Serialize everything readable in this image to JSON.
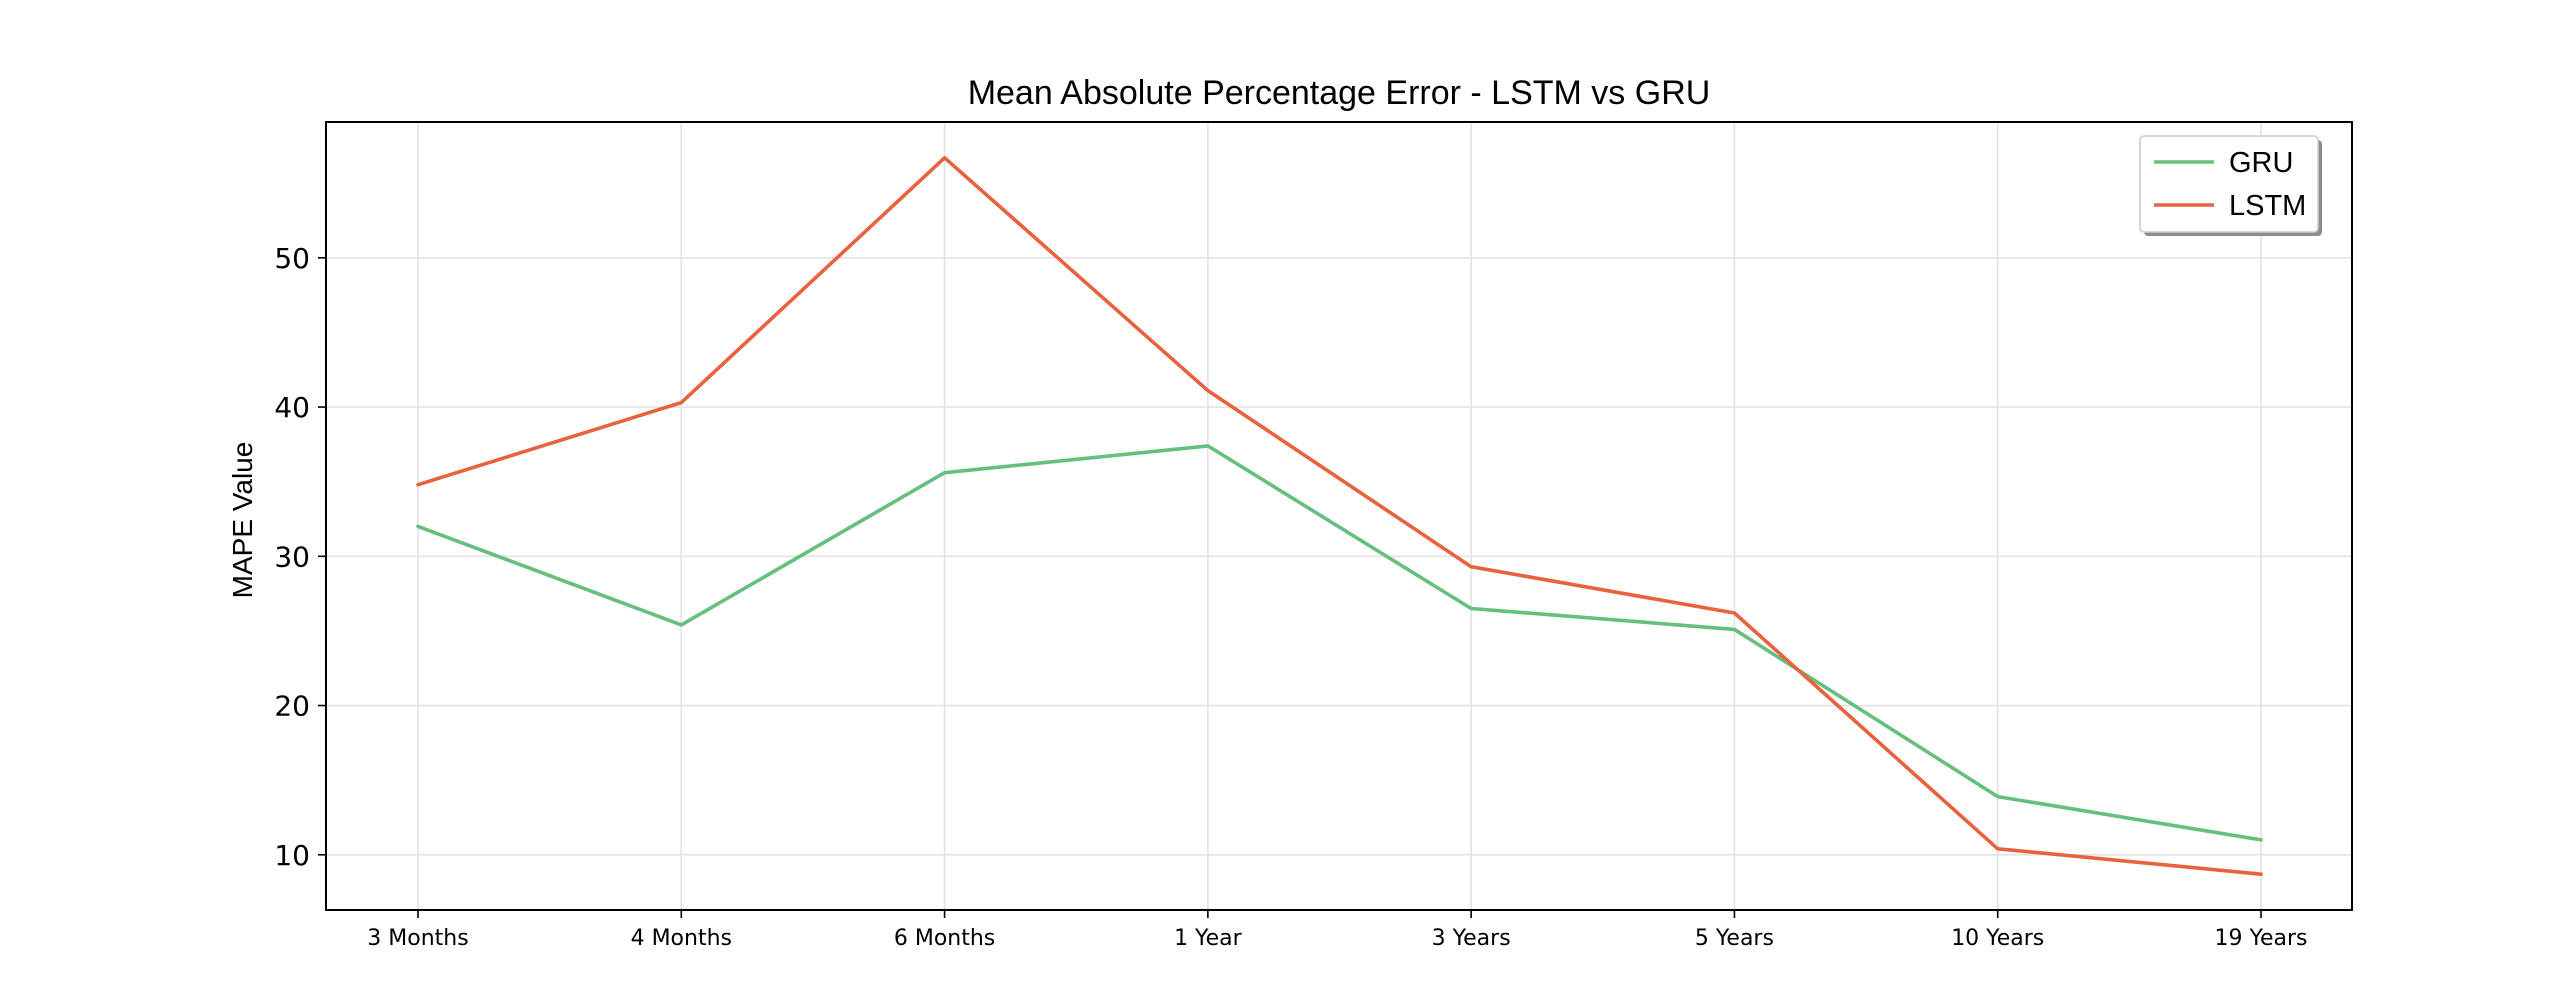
{
  "chart_data": {
    "type": "line",
    "title": "Mean Absolute Percentage Error - LSTM vs GRU",
    "xlabel": "",
    "ylabel": "MAPE Value",
    "categories": [
      "3 Months",
      "4 Months",
      "6 Months",
      "1 Year",
      "3 Years",
      "5 Years",
      "10 Years",
      "19 Years"
    ],
    "series": [
      {
        "name": "GRU",
        "color": "#66bf7e",
        "values": [
          32.0,
          25.4,
          35.6,
          37.4,
          26.5,
          25.1,
          13.9,
          11.0
        ]
      },
      {
        "name": "LSTM",
        "color": "#e8623f",
        "values": [
          34.8,
          40.3,
          56.7,
          41.1,
          29.3,
          26.2,
          10.4,
          8.7
        ]
      }
    ],
    "yticks": [
      10,
      20,
      30,
      40,
      50
    ],
    "ylim": [
      6.3,
      59.1
    ],
    "grid": true,
    "legend_position": "top-right"
  }
}
